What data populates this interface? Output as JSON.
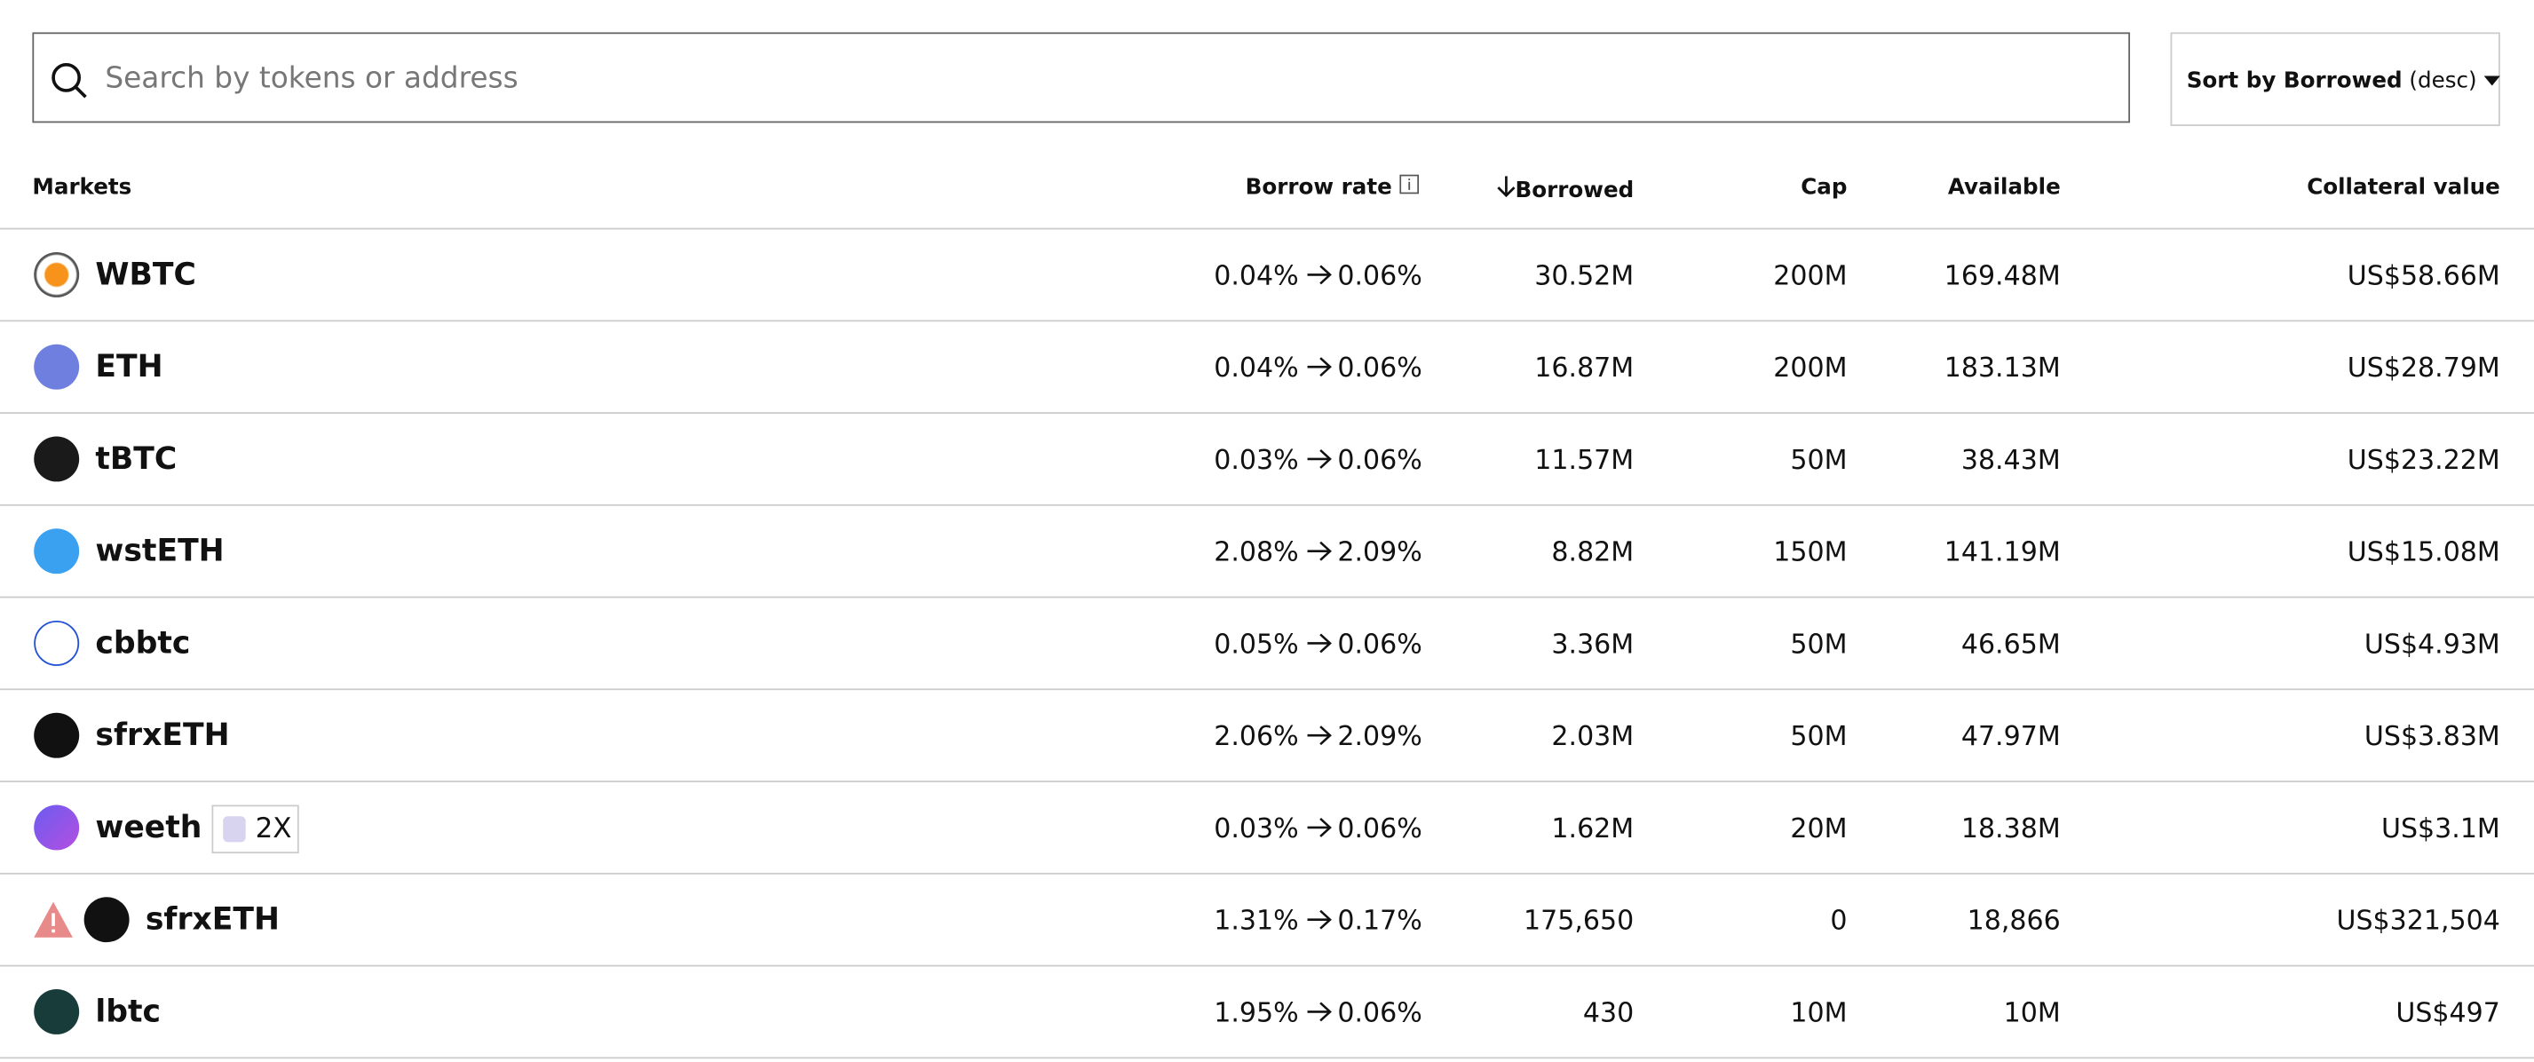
{
  "search": {
    "placeholder": "Search by tokens or address"
  },
  "sort": {
    "label": "Sort by Borrowed",
    "order": "(desc)"
  },
  "table": {
    "columns": [
      "Markets",
      "Borrow rate",
      "Borrowed",
      "Cap",
      "Available",
      "Collateral value"
    ],
    "rows": [
      {
        "market": "WBTC",
        "rate_from": "0.04%",
        "rate_to": "0.06%",
        "borrowed": "30.52M",
        "cap": "200M",
        "available": "169.48M",
        "collateral": "US$58.66M"
      },
      {
        "market": "ETH",
        "rate_from": "0.04%",
        "rate_to": "0.06%",
        "borrowed": "16.87M",
        "cap": "200M",
        "available": "183.13M",
        "collateral": "US$28.79M"
      },
      {
        "market": "tBTC",
        "rate_from": "0.03%",
        "rate_to": "0.06%",
        "borrowed": "11.57M",
        "cap": "50M",
        "available": "38.43M",
        "collateral": "US$23.22M"
      },
      {
        "market": "wstETH",
        "rate_from": "2.08%",
        "rate_to": "2.09%",
        "borrowed": "8.82M",
        "cap": "150M",
        "available": "141.19M",
        "collateral": "US$15.08M"
      },
      {
        "market": "cbbtc",
        "rate_from": "0.05%",
        "rate_to": "0.06%",
        "borrowed": "3.36M",
        "cap": "50M",
        "available": "46.65M",
        "collateral": "US$4.93M"
      },
      {
        "market": "sfrxETH",
        "rate_from": "2.06%",
        "rate_to": "2.09%",
        "borrowed": "2.03M",
        "cap": "50M",
        "available": "47.97M",
        "collateral": "US$3.83M"
      },
      {
        "market": "weeth",
        "badge": "2X",
        "rate_from": "0.03%",
        "rate_to": "0.06%",
        "borrowed": "1.62M",
        "cap": "20M",
        "available": "18.38M",
        "collateral": "US$3.1M"
      },
      {
        "market": "sfrxETH",
        "rate_from": "1.31%",
        "rate_to": "0.17%",
        "borrowed": "175,650",
        "cap": "0",
        "available": "18,866",
        "collateral": "US$321,504"
      },
      {
        "market": "lbtc",
        "rate_from": "1.95%",
        "rate_to": "0.06%",
        "borrowed": "430",
        "cap": "10M",
        "available": "10M",
        "collateral": "US$497"
      }
    ]
  }
}
